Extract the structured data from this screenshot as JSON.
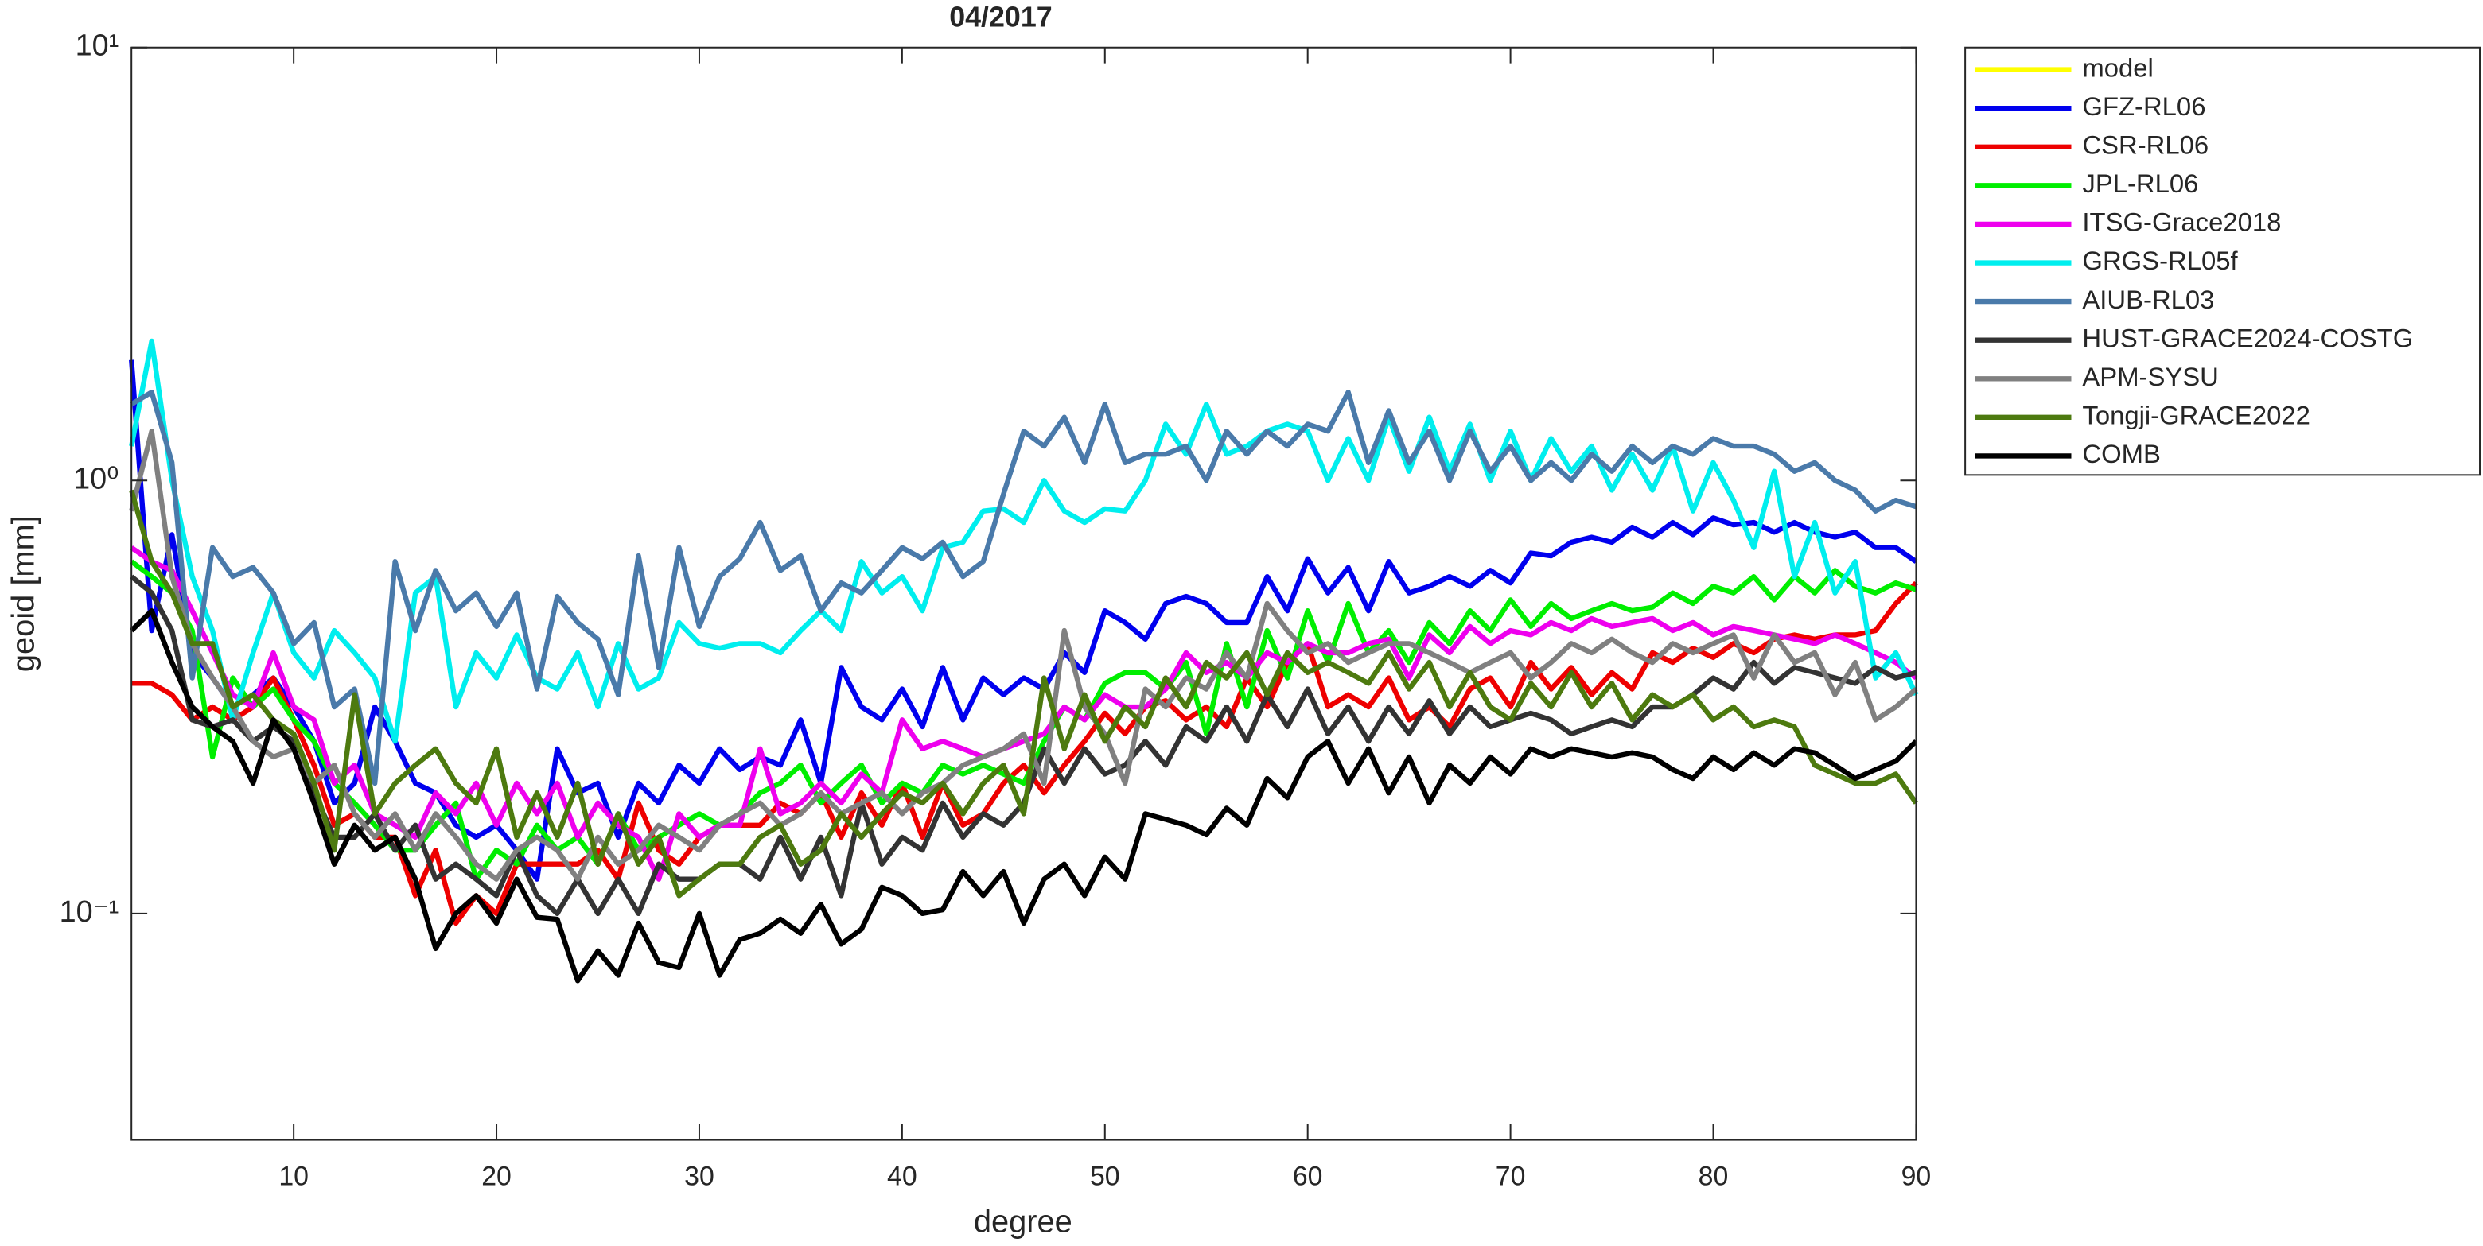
{
  "chart_data": {
    "type": "line",
    "title": "04/2017",
    "xlabel": "degree",
    "ylabel": "geoid [mm]",
    "log_y": true,
    "xlim": [
      2,
      90
    ],
    "ylim": [
      0.03,
      10
    ],
    "xticks": [
      10,
      20,
      30,
      40,
      50,
      60,
      70,
      80,
      90
    ],
    "yticks": [
      {
        "value": 0.1,
        "label": "10⁻¹"
      },
      {
        "value": 1,
        "label": "10⁰"
      },
      {
        "value": 10,
        "label": "10¹"
      }
    ],
    "legend": "outside-right-top",
    "x": [
      2,
      3,
      4,
      5,
      6,
      7,
      8,
      9,
      10,
      11,
      12,
      13,
      14,
      15,
      16,
      17,
      18,
      19,
      20,
      21,
      22,
      23,
      24,
      25,
      26,
      27,
      28,
      29,
      30,
      31,
      32,
      33,
      34,
      35,
      36,
      37,
      38,
      39,
      40,
      41,
      42,
      43,
      44,
      45,
      46,
      47,
      48,
      49,
      50,
      51,
      52,
      53,
      54,
      55,
      56,
      57,
      58,
      59,
      60,
      61,
      62,
      63,
      64,
      65,
      66,
      67,
      68,
      69,
      70,
      71,
      72,
      73,
      74,
      75,
      76,
      77,
      78,
      79,
      80,
      81,
      82,
      83,
      84,
      85,
      86,
      87,
      88,
      89,
      90
    ],
    "series": [
      {
        "name": "model",
        "color": "#ffff00",
        "values": [
          null,
          null,
          null,
          null,
          null,
          null,
          null,
          null,
          null,
          null,
          null,
          null,
          null,
          null,
          null,
          null,
          null,
          null,
          null,
          null,
          null,
          null,
          null,
          null,
          null,
          null,
          null,
          null,
          null,
          null,
          null,
          null,
          null,
          null,
          null,
          null,
          null,
          null,
          null,
          null,
          null,
          null,
          null,
          null,
          null,
          null,
          null,
          null,
          null,
          null,
          null,
          null,
          null,
          null,
          null,
          null,
          null,
          null,
          null,
          null,
          null,
          null,
          null,
          null,
          null,
          null,
          null,
          null,
          null,
          null,
          null,
          null,
          null,
          null,
          null,
          null,
          null,
          null,
          null,
          null,
          null,
          null,
          null,
          null,
          null,
          null,
          null,
          null,
          null
        ]
      },
      {
        "name": "GFZ-RL06",
        "color": "#0000ee",
        "values": [
          1.9,
          0.45,
          0.75,
          0.4,
          0.35,
          0.3,
          0.32,
          0.35,
          0.3,
          0.25,
          0.18,
          0.2,
          0.3,
          0.25,
          0.2,
          0.19,
          0.16,
          0.15,
          0.16,
          0.14,
          0.12,
          0.24,
          0.19,
          0.2,
          0.15,
          0.2,
          0.18,
          0.22,
          0.2,
          0.24,
          0.215,
          0.23,
          0.22,
          0.28,
          0.2,
          0.37,
          0.3,
          0.28,
          0.33,
          0.27,
          0.37,
          0.28,
          0.35,
          0.32,
          0.35,
          0.33,
          0.4,
          0.36,
          0.5,
          0.47,
          0.43,
          0.52,
          0.54,
          0.52,
          0.47,
          0.47,
          0.6,
          0.5,
          0.66,
          0.55,
          0.63,
          0.5,
          0.65,
          0.55,
          0.57,
          0.6,
          0.57,
          0.62,
          0.58,
          0.68,
          0.67,
          0.72,
          0.74,
          0.72,
          0.78,
          0.74,
          0.8,
          0.75,
          0.82,
          0.79,
          0.8,
          0.76,
          0.8,
          0.76,
          0.74,
          0.76,
          0.7,
          0.7,
          0.65
        ]
      },
      {
        "name": "CSR-RL06",
        "color": "#ee0000",
        "values": [
          0.34,
          0.34,
          0.32,
          0.28,
          0.3,
          0.28,
          0.3,
          0.35,
          0.28,
          0.22,
          0.16,
          0.17,
          0.15,
          0.15,
          0.11,
          0.14,
          0.095,
          0.11,
          0.1,
          0.13,
          0.13,
          0.13,
          0.13,
          0.14,
          0.12,
          0.18,
          0.14,
          0.13,
          0.15,
          0.16,
          0.16,
          0.16,
          0.18,
          0.17,
          0.19,
          0.15,
          0.19,
          0.16,
          0.2,
          0.15,
          0.2,
          0.16,
          0.17,
          0.2,
          0.22,
          0.19,
          0.22,
          0.25,
          0.29,
          0.26,
          0.3,
          0.31,
          0.28,
          0.3,
          0.27,
          0.35,
          0.3,
          0.38,
          0.42,
          0.3,
          0.32,
          0.3,
          0.35,
          0.28,
          0.3,
          0.27,
          0.33,
          0.35,
          0.3,
          0.38,
          0.33,
          0.37,
          0.32,
          0.36,
          0.33,
          0.4,
          0.38,
          0.41,
          0.39,
          0.42,
          0.4,
          0.43,
          0.44,
          0.43,
          0.44,
          0.44,
          0.45,
          0.52,
          0.58
        ]
      },
      {
        "name": "JPL-RL06",
        "color": "#00ee00",
        "values": [
          0.65,
          0.6,
          0.55,
          0.45,
          0.23,
          0.35,
          0.3,
          0.33,
          0.28,
          0.25,
          0.2,
          0.18,
          0.16,
          0.14,
          0.14,
          0.16,
          0.18,
          0.12,
          0.14,
          0.13,
          0.16,
          0.14,
          0.15,
          0.13,
          0.17,
          0.14,
          0.15,
          0.16,
          0.17,
          0.16,
          0.17,
          0.19,
          0.2,
          0.22,
          0.18,
          0.2,
          0.22,
          0.18,
          0.2,
          0.19,
          0.22,
          0.21,
          0.22,
          0.21,
          0.2,
          0.25,
          0.3,
          0.28,
          0.34,
          0.36,
          0.36,
          0.33,
          0.38,
          0.26,
          0.42,
          0.3,
          0.45,
          0.35,
          0.5,
          0.38,
          0.52,
          0.4,
          0.45,
          0.38,
          0.47,
          0.42,
          0.5,
          0.45,
          0.53,
          0.46,
          0.52,
          0.48,
          0.5,
          0.52,
          0.5,
          0.51,
          0.55,
          0.52,
          0.57,
          0.55,
          0.6,
          0.53,
          0.6,
          0.55,
          0.62,
          0.57,
          0.55,
          0.58,
          0.56
        ]
      },
      {
        "name": "ITSG-Grace2018",
        "color": "#ee00ee",
        "values": [
          0.7,
          0.65,
          0.62,
          0.5,
          0.4,
          0.32,
          0.3,
          0.4,
          0.3,
          0.28,
          0.2,
          0.22,
          0.17,
          0.16,
          0.15,
          0.19,
          0.17,
          0.2,
          0.16,
          0.2,
          0.17,
          0.2,
          0.15,
          0.18,
          0.16,
          0.15,
          0.12,
          0.17,
          0.15,
          0.16,
          0.16,
          0.24,
          0.17,
          0.18,
          0.2,
          0.18,
          0.21,
          0.19,
          0.28,
          0.24,
          0.25,
          0.24,
          0.23,
          0.24,
          0.25,
          0.26,
          0.3,
          0.28,
          0.32,
          0.3,
          0.3,
          0.33,
          0.4,
          0.36,
          0.38,
          0.35,
          0.4,
          0.38,
          0.42,
          0.4,
          0.4,
          0.42,
          0.43,
          0.35,
          0.44,
          0.4,
          0.46,
          0.42,
          0.45,
          0.44,
          0.47,
          0.45,
          0.48,
          0.46,
          0.47,
          0.48,
          0.45,
          0.47,
          0.44,
          0.46,
          0.45,
          0.44,
          0.43,
          0.42,
          0.44,
          0.42,
          0.4,
          0.38,
          0.35
        ]
      },
      {
        "name": "GRGS-RL05f",
        "color": "#00eeee",
        "values": [
          1.2,
          2.1,
          1.0,
          0.6,
          0.45,
          0.28,
          0.4,
          0.55,
          0.4,
          0.35,
          0.45,
          0.4,
          0.35,
          0.25,
          0.55,
          0.6,
          0.3,
          0.4,
          0.35,
          0.44,
          0.35,
          0.33,
          0.4,
          0.3,
          0.42,
          0.33,
          0.35,
          0.47,
          0.42,
          0.41,
          0.42,
          0.42,
          0.4,
          0.45,
          0.5,
          0.45,
          0.65,
          0.55,
          0.6,
          0.5,
          0.7,
          0.72,
          0.85,
          0.86,
          0.8,
          1.0,
          0.85,
          0.8,
          0.86,
          0.85,
          1.0,
          1.35,
          1.15,
          1.5,
          1.15,
          1.2,
          1.3,
          1.35,
          1.3,
          1.0,
          1.25,
          1.0,
          1.4,
          1.05,
          1.4,
          1.05,
          1.35,
          1.0,
          1.3,
          1.0,
          1.25,
          1.05,
          1.2,
          0.95,
          1.15,
          0.95,
          1.2,
          0.85,
          1.1,
          0.9,
          0.7,
          1.05,
          0.6,
          0.8,
          0.55,
          0.65,
          0.35,
          0.4,
          0.32
        ]
      },
      {
        "name": "AIUB-RL03",
        "color": "#4a7aaa",
        "values": [
          1.5,
          1.6,
          1.1,
          0.35,
          0.7,
          0.6,
          0.63,
          0.55,
          0.42,
          0.47,
          0.3,
          0.33,
          0.2,
          0.65,
          0.45,
          0.62,
          0.5,
          0.55,
          0.46,
          0.55,
          0.33,
          0.54,
          0.47,
          0.43,
          0.32,
          0.67,
          0.37,
          0.7,
          0.46,
          0.6,
          0.66,
          0.8,
          0.62,
          0.67,
          0.5,
          0.58,
          0.55,
          0.62,
          0.7,
          0.66,
          0.72,
          0.6,
          0.65,
          0.93,
          1.3,
          1.2,
          1.4,
          1.1,
          1.5,
          1.1,
          1.15,
          1.15,
          1.2,
          1.0,
          1.3,
          1.15,
          1.3,
          1.2,
          1.35,
          1.3,
          1.6,
          1.1,
          1.45,
          1.1,
          1.3,
          1.0,
          1.3,
          1.05,
          1.2,
          1.0,
          1.1,
          1.0,
          1.15,
          1.05,
          1.2,
          1.1,
          1.2,
          1.15,
          1.25,
          1.2,
          1.2,
          1.15,
          1.05,
          1.1,
          1.0,
          0.95,
          0.85,
          0.9,
          0.87
        ]
      },
      {
        "name": "HUST-GRACE2024-COSTG",
        "color": "#333333",
        "values": [
          0.6,
          0.55,
          0.45,
          0.28,
          0.27,
          0.28,
          0.25,
          0.27,
          0.25,
          0.19,
          0.15,
          0.15,
          0.17,
          0.14,
          0.16,
          0.12,
          0.13,
          0.12,
          0.11,
          0.14,
          0.11,
          0.1,
          0.12,
          0.1,
          0.12,
          0.1,
          0.13,
          0.12,
          0.12,
          0.13,
          0.13,
          0.12,
          0.15,
          0.12,
          0.15,
          0.11,
          0.18,
          0.13,
          0.15,
          0.14,
          0.18,
          0.15,
          0.17,
          0.16,
          0.18,
          0.24,
          0.2,
          0.24,
          0.21,
          0.22,
          0.25,
          0.22,
          0.27,
          0.25,
          0.3,
          0.25,
          0.32,
          0.27,
          0.33,
          0.26,
          0.3,
          0.25,
          0.3,
          0.26,
          0.31,
          0.26,
          0.3,
          0.27,
          0.28,
          0.29,
          0.28,
          0.26,
          0.27,
          0.28,
          0.27,
          0.3,
          0.3,
          0.32,
          0.35,
          0.33,
          0.38,
          0.34,
          0.37,
          0.36,
          0.35,
          0.34,
          0.37,
          0.35,
          0.36
        ]
      },
      {
        "name": "APM-SYSU",
        "color": "#808080",
        "values": [
          0.85,
          1.3,
          0.6,
          0.42,
          0.35,
          0.3,
          0.25,
          0.23,
          0.24,
          0.2,
          0.22,
          0.17,
          0.15,
          0.17,
          0.14,
          0.17,
          0.15,
          0.13,
          0.12,
          0.14,
          0.15,
          0.14,
          0.12,
          0.15,
          0.13,
          0.14,
          0.16,
          0.15,
          0.14,
          0.16,
          0.17,
          0.18,
          0.16,
          0.17,
          0.19,
          0.17,
          0.18,
          0.19,
          0.17,
          0.19,
          0.2,
          0.22,
          0.23,
          0.24,
          0.26,
          0.2,
          0.45,
          0.3,
          0.26,
          0.2,
          0.33,
          0.3,
          0.35,
          0.33,
          0.4,
          0.35,
          0.52,
          0.45,
          0.4,
          0.42,
          0.38,
          0.4,
          0.42,
          0.42,
          0.4,
          0.38,
          0.36,
          0.38,
          0.4,
          0.35,
          0.38,
          0.42,
          0.4,
          0.43,
          0.4,
          0.38,
          0.42,
          0.4,
          0.42,
          0.44,
          0.35,
          0.44,
          0.38,
          0.4,
          0.32,
          0.38,
          0.28,
          0.3,
          0.33
        ]
      },
      {
        "name": "Tongji-GRACE2022",
        "color": "#4d7a0f",
        "values": [
          0.95,
          0.65,
          0.55,
          0.42,
          0.42,
          0.3,
          0.32,
          0.28,
          0.26,
          0.2,
          0.14,
          0.32,
          0.17,
          0.2,
          0.22,
          0.24,
          0.2,
          0.18,
          0.24,
          0.15,
          0.19,
          0.15,
          0.2,
          0.13,
          0.17,
          0.13,
          0.15,
          0.11,
          0.12,
          0.13,
          0.13,
          0.15,
          0.16,
          0.13,
          0.14,
          0.17,
          0.15,
          0.17,
          0.19,
          0.18,
          0.2,
          0.17,
          0.2,
          0.22,
          0.17,
          0.35,
          0.24,
          0.32,
          0.25,
          0.3,
          0.27,
          0.35,
          0.3,
          0.38,
          0.35,
          0.4,
          0.32,
          0.4,
          0.36,
          0.38,
          0.36,
          0.34,
          0.4,
          0.33,
          0.38,
          0.3,
          0.36,
          0.3,
          0.28,
          0.34,
          0.3,
          0.36,
          0.3,
          0.34,
          0.28,
          0.32,
          0.3,
          0.32,
          0.28,
          0.3,
          0.27,
          0.28,
          0.27,
          0.22,
          0.21,
          0.2,
          0.2,
          0.21,
          0.18
        ]
      },
      {
        "name": "COMB",
        "color": "#000000",
        "values": [
          0.45,
          0.5,
          0.38,
          0.3,
          0.27,
          0.25,
          0.2,
          0.28,
          0.24,
          0.18,
          0.13,
          0.16,
          0.14,
          0.15,
          0.12,
          0.083,
          0.1,
          0.11,
          0.095,
          0.12,
          0.098,
          0.097,
          0.07,
          0.082,
          0.072,
          0.095,
          0.077,
          0.075,
          0.1,
          0.072,
          0.087,
          0.09,
          0.097,
          0.09,
          0.105,
          0.085,
          0.092,
          0.115,
          0.11,
          0.1,
          0.102,
          0.125,
          0.11,
          0.125,
          0.095,
          0.12,
          0.13,
          0.11,
          0.135,
          0.12,
          0.17,
          0.165,
          0.16,
          0.152,
          0.175,
          0.16,
          0.205,
          0.185,
          0.23,
          0.25,
          0.2,
          0.24,
          0.19,
          0.23,
          0.18,
          0.22,
          0.2,
          0.23,
          0.21,
          0.24,
          0.23,
          0.24,
          0.235,
          0.23,
          0.235,
          0.23,
          0.215,
          0.205,
          0.23,
          0.215,
          0.235,
          0.22,
          0.24,
          0.235,
          0.22,
          0.205,
          0.215,
          0.225,
          0.25
        ]
      }
    ]
  }
}
